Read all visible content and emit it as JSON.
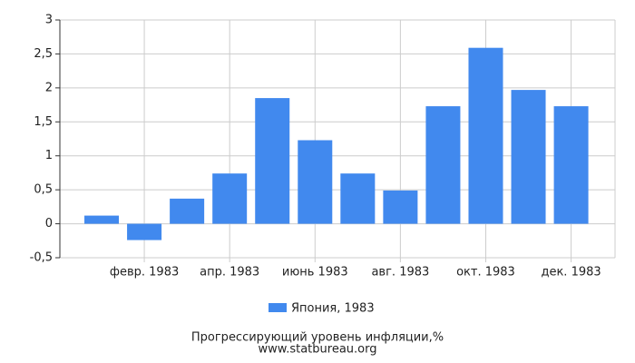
{
  "chart_data": {
    "type": "bar",
    "title": "Прогрессирующий уровень инфляции,%",
    "source": "www.statbureau.org",
    "categories": [
      null,
      "февр. 1983",
      null,
      "апр. 1983",
      null,
      "июнь 1983",
      null,
      "авг. 1983",
      null,
      "окт. 1983",
      null,
      "дек. 1983"
    ],
    "series": [
      {
        "name": "Япония, 1983",
        "color": "#4189ee",
        "values": [
          0.12,
          -0.24,
          0.37,
          0.74,
          1.85,
          1.23,
          0.74,
          0.49,
          1.73,
          2.59,
          1.97,
          1.73
        ]
      }
    ],
    "ylim": [
      -0.5,
      3
    ],
    "yticks": [
      {
        "value": -0.5,
        "label": "-0,5"
      },
      0,
      {
        "value": 0.5,
        "label": "0,5"
      },
      1,
      {
        "value": 1.5,
        "label": "1,5"
      },
      2,
      {
        "value": 2.5,
        "label": "2,5"
      },
      3
    ],
    "grid": true
  }
}
